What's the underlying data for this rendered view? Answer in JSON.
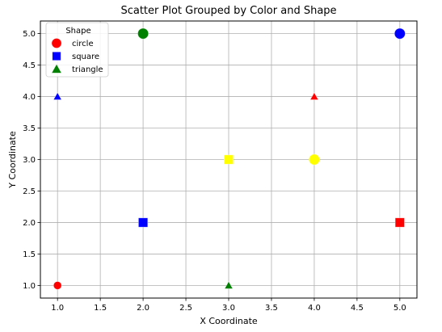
{
  "chart_data": {
    "type": "scatter",
    "title": "Scatter Plot Grouped by Color and Shape",
    "xlabel": "X Coordinate",
    "ylabel": "Y Coordinate",
    "xlim": [
      0.8,
      5.2
    ],
    "ylim": [
      0.8,
      5.2
    ],
    "xticks": [
      "1.0",
      "1.5",
      "2.0",
      "2.5",
      "3.0",
      "3.5",
      "4.0",
      "4.5",
      "5.0"
    ],
    "yticks": [
      "1.0",
      "1.5",
      "2.0",
      "2.5",
      "3.0",
      "3.5",
      "4.0",
      "4.5",
      "5.0"
    ],
    "grid": true,
    "legend": {
      "title": "Shape",
      "placement": "top-left",
      "entries": [
        {
          "label": "circle",
          "shape": "circle",
          "color": "#ff0000"
        },
        {
          "label": "square",
          "shape": "square",
          "color": "#0000ff"
        },
        {
          "label": "triangle",
          "shape": "triangle",
          "color": "#008000"
        }
      ]
    },
    "points": [
      {
        "x": 1.0,
        "y": 1.0,
        "shape": "circle",
        "color": "red"
      },
      {
        "x": 1.0,
        "y": 4.0,
        "shape": "triangle",
        "color": "blue"
      },
      {
        "x": 2.0,
        "y": 2.0,
        "shape": "square",
        "color": "blue"
      },
      {
        "x": 2.0,
        "y": 5.0,
        "shape": "circle",
        "color": "green"
      },
      {
        "x": 3.0,
        "y": 1.0,
        "shape": "triangle",
        "color": "green"
      },
      {
        "x": 3.0,
        "y": 3.0,
        "shape": "square",
        "color": "yellow"
      },
      {
        "x": 4.0,
        "y": 3.0,
        "shape": "circle",
        "color": "yellow"
      },
      {
        "x": 4.0,
        "y": 4.0,
        "shape": "triangle",
        "color": "red"
      },
      {
        "x": 5.0,
        "y": 2.0,
        "shape": "square",
        "color": "red"
      },
      {
        "x": 5.0,
        "y": 5.0,
        "shape": "circle",
        "color": "blue"
      }
    ]
  }
}
